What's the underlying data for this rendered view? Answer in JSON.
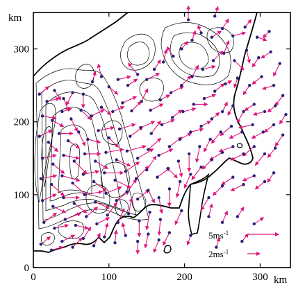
{
  "chart_data": {
    "type": "scatter",
    "title": "",
    "xlabel": "",
    "ylabel": "",
    "x_unit": "km",
    "y_unit": "km",
    "xlim": [
      0,
      340
    ],
    "ylim": [
      0,
      350
    ],
    "xticks": [
      0,
      100,
      200,
      300
    ],
    "yticks": [
      0,
      100,
      200,
      300
    ],
    "xtick_labels": [
      "0",
      "100",
      "200",
      "300"
    ],
    "ytick_labels": [
      "0",
      "100",
      "200",
      "300"
    ],
    "grid": false,
    "legend_position": "bottom-right",
    "vector_color": "#e0157a",
    "station_color": "#2a1f7a",
    "contour_color": "#000000",
    "legend": {
      "entries": [
        {
          "label": "5ms",
          "superscript": "-1",
          "speed": 5
        },
        {
          "label": "2ms",
          "superscript": "-1",
          "speed": 2
        }
      ]
    },
    "stations": [
      {
        "x": 8,
        "y": 238,
        "u": 1.5,
        "v": 1.2
      },
      {
        "x": 18,
        "y": 228,
        "u": 2.0,
        "v": 0.5
      },
      {
        "x": 28,
        "y": 243,
        "u": 1.0,
        "v": -1.5
      },
      {
        "x": 40,
        "y": 232,
        "u": 0.8,
        "v": -2.0
      },
      {
        "x": 52,
        "y": 240,
        "u": -1.0,
        "v": -2.0
      },
      {
        "x": 66,
        "y": 238,
        "u": 0.0,
        "v": -2.2
      },
      {
        "x": 78,
        "y": 255,
        "u": 0.5,
        "v": 1.6
      },
      {
        "x": 90,
        "y": 262,
        "u": -0.5,
        "v": 2.0
      },
      {
        "x": 100,
        "y": 248,
        "u": 1.4,
        "v": -1.2
      },
      {
        "x": 112,
        "y": 258,
        "u": 2.0,
        "v": 0.5
      },
      {
        "x": 125,
        "y": 250,
        "u": 1.5,
        "v": 1.0
      },
      {
        "x": 138,
        "y": 265,
        "u": -1.5,
        "v": 1.8
      },
      {
        "x": 150,
        "y": 258,
        "u": 2.0,
        "v": 1.0
      },
      {
        "x": 160,
        "y": 272,
        "u": 1.0,
        "v": 1.5
      },
      {
        "x": 172,
        "y": 282,
        "u": 0.5,
        "v": 2.0
      },
      {
        "x": 185,
        "y": 290,
        "u": -1.0,
        "v": 1.5
      },
      {
        "x": 196,
        "y": 300,
        "u": 1.0,
        "v": 1.2
      },
      {
        "x": 210,
        "y": 312,
        "u": 0.5,
        "v": 1.5
      },
      {
        "x": 222,
        "y": 322,
        "u": -0.5,
        "v": 1.2
      },
      {
        "x": 236,
        "y": 316,
        "u": 1.5,
        "v": 1.0
      },
      {
        "x": 250,
        "y": 328,
        "u": 1.0,
        "v": 1.5
      },
      {
        "x": 264,
        "y": 318,
        "u": 2.0,
        "v": 0.5
      },
      {
        "x": 280,
        "y": 330,
        "u": 1.0,
        "v": 1.2
      },
      {
        "x": 296,
        "y": 316,
        "u": 1.5,
        "v": -0.5
      },
      {
        "x": 312,
        "y": 324,
        "u": -1.0,
        "v": -1.0
      },
      {
        "x": 205,
        "y": 340,
        "u": 0.0,
        "v": 2.2
      },
      {
        "x": 240,
        "y": 345,
        "u": 0.5,
        "v": 1.5
      },
      {
        "x": 12,
        "y": 208,
        "u": 2.2,
        "v": -0.4
      },
      {
        "x": 25,
        "y": 202,
        "u": 1.8,
        "v": -1.0
      },
      {
        "x": 38,
        "y": 214,
        "u": 1.5,
        "v": 0.5
      },
      {
        "x": 50,
        "y": 204,
        "u": 1.0,
        "v": -2.0
      },
      {
        "x": 63,
        "y": 216,
        "u": 1.6,
        "v": -1.5
      },
      {
        "x": 77,
        "y": 208,
        "u": 2.0,
        "v": 1.0
      },
      {
        "x": 90,
        "y": 220,
        "u": 1.5,
        "v": -1.2
      },
      {
        "x": 105,
        "y": 214,
        "u": 1.8,
        "v": 0.8
      },
      {
        "x": 118,
        "y": 226,
        "u": 2.2,
        "v": 1.0
      },
      {
        "x": 130,
        "y": 215,
        "u": 1.5,
        "v": 1.5
      },
      {
        "x": 143,
        "y": 228,
        "u": 1.0,
        "v": 2.0
      },
      {
        "x": 155,
        "y": 216,
        "u": 2.0,
        "v": 1.0
      },
      {
        "x": 168,
        "y": 230,
        "u": 1.5,
        "v": 0.8
      },
      {
        "x": 182,
        "y": 240,
        "u": 2.0,
        "v": 1.0
      },
      {
        "x": 196,
        "y": 250,
        "u": 1.5,
        "v": 1.5
      },
      {
        "x": 210,
        "y": 262,
        "u": 1.0,
        "v": 1.8
      },
      {
        "x": 224,
        "y": 272,
        "u": 2.0,
        "v": 0.5
      },
      {
        "x": 238,
        "y": 284,
        "u": 1.5,
        "v": 1.5
      },
      {
        "x": 252,
        "y": 294,
        "u": 0.8,
        "v": 2.0
      },
      {
        "x": 266,
        "y": 284,
        "u": 1.5,
        "v": -1.5
      },
      {
        "x": 282,
        "y": 298,
        "u": 0.5,
        "v": -2.0
      },
      {
        "x": 298,
        "y": 288,
        "u": -1.0,
        "v": -1.5
      },
      {
        "x": 314,
        "y": 296,
        "u": -1.5,
        "v": -1.0
      },
      {
        "x": 326,
        "y": 280,
        "u": -1.0,
        "v": -2.0
      },
      {
        "x": 8,
        "y": 180,
        "u": 2.0,
        "v": 1.0
      },
      {
        "x": 20,
        "y": 172,
        "u": 1.5,
        "v": -1.5
      },
      {
        "x": 34,
        "y": 184,
        "u": 2.2,
        "v": 0.0
      },
      {
        "x": 46,
        "y": 174,
        "u": 1.8,
        "v": -1.2
      },
      {
        "x": 60,
        "y": 186,
        "u": 1.0,
        "v": -2.2
      },
      {
        "x": 72,
        "y": 176,
        "u": 2.0,
        "v": -0.5
      },
      {
        "x": 86,
        "y": 188,
        "u": 2.5,
        "v": 0.5
      },
      {
        "x": 100,
        "y": 178,
        "u": 1.5,
        "v": -1.5
      },
      {
        "x": 114,
        "y": 190,
        "u": 2.5,
        "v": 0.8
      },
      {
        "x": 128,
        "y": 180,
        "u": 2.0,
        "v": 1.5
      },
      {
        "x": 142,
        "y": 192,
        "u": 2.2,
        "v": 1.0
      },
      {
        "x": 156,
        "y": 184,
        "u": 1.5,
        "v": 2.0
      },
      {
        "x": 170,
        "y": 196,
        "u": 2.0,
        "v": 0.8
      },
      {
        "x": 184,
        "y": 206,
        "u": 1.5,
        "v": 1.2
      },
      {
        "x": 198,
        "y": 214,
        "u": 2.0,
        "v": 0.5
      },
      {
        "x": 212,
        "y": 224,
        "u": 2.2,
        "v": 0.0
      },
      {
        "x": 226,
        "y": 232,
        "u": 1.8,
        "v": 0.6
      },
      {
        "x": 240,
        "y": 242,
        "u": 1.5,
        "v": 1.2
      },
      {
        "x": 254,
        "y": 252,
        "u": 1.0,
        "v": 0.5
      },
      {
        "x": 270,
        "y": 260,
        "u": -0.5,
        "v": -1.5
      },
      {
        "x": 286,
        "y": 250,
        "u": -1.0,
        "v": -1.5
      },
      {
        "x": 302,
        "y": 262,
        "u": -1.5,
        "v": -1.2
      },
      {
        "x": 318,
        "y": 250,
        "u": -1.8,
        "v": -0.6
      },
      {
        "x": 330,
        "y": 236,
        "u": -1.2,
        "v": -1.6
      },
      {
        "x": 12,
        "y": 150,
        "u": 2.2,
        "v": 0.5
      },
      {
        "x": 26,
        "y": 142,
        "u": 1.8,
        "v": -1.5
      },
      {
        "x": 40,
        "y": 154,
        "u": 2.5,
        "v": -0.5
      },
      {
        "x": 54,
        "y": 146,
        "u": 2.0,
        "v": -2.0
      },
      {
        "x": 68,
        "y": 156,
        "u": 2.5,
        "v": 0.0
      },
      {
        "x": 82,
        "y": 146,
        "u": 2.0,
        "v": -1.2
      },
      {
        "x": 96,
        "y": 158,
        "u": 2.8,
        "v": 0.5
      },
      {
        "x": 110,
        "y": 148,
        "u": 2.2,
        "v": -1.0
      },
      {
        "x": 124,
        "y": 160,
        "u": 3.0,
        "v": 0.8
      },
      {
        "x": 138,
        "y": 150,
        "u": 2.5,
        "v": 1.5
      },
      {
        "x": 152,
        "y": 162,
        "u": 2.0,
        "v": 1.8
      },
      {
        "x": 166,
        "y": 154,
        "u": 2.2,
        "v": 1.0
      },
      {
        "x": 180,
        "y": 166,
        "u": 2.0,
        "v": 1.5
      },
      {
        "x": 194,
        "y": 176,
        "u": 1.8,
        "v": 1.0
      },
      {
        "x": 208,
        "y": 186,
        "u": 2.0,
        "v": 0.5
      },
      {
        "x": 222,
        "y": 194,
        "u": 1.5,
        "v": 0.8
      },
      {
        "x": 236,
        "y": 204,
        "u": 1.2,
        "v": 1.0
      },
      {
        "x": 250,
        "y": 214,
        "u": 0.8,
        "v": 1.5
      },
      {
        "x": 264,
        "y": 222,
        "u": -0.8,
        "v": -1.5
      },
      {
        "x": 278,
        "y": 214,
        "u": -1.0,
        "v": -1.8
      },
      {
        "x": 292,
        "y": 224,
        "u": -1.5,
        "v": -1.0
      },
      {
        "x": 306,
        "y": 214,
        "u": -1.8,
        "v": -0.5
      },
      {
        "x": 320,
        "y": 222,
        "u": -1.2,
        "v": -1.0
      },
      {
        "x": 334,
        "y": 210,
        "u": -1.0,
        "v": -1.5
      },
      {
        "x": 10,
        "y": 122,
        "u": 2.5,
        "v": 0.5
      },
      {
        "x": 24,
        "y": 114,
        "u": 2.0,
        "v": -1.8
      },
      {
        "x": 38,
        "y": 126,
        "u": 2.8,
        "v": -0.8
      },
      {
        "x": 52,
        "y": 116,
        "u": 2.2,
        "v": -2.0
      },
      {
        "x": 66,
        "y": 128,
        "u": 2.5,
        "v": 0.5
      },
      {
        "x": 80,
        "y": 118,
        "u": 2.0,
        "v": -1.5
      },
      {
        "x": 94,
        "y": 130,
        "u": 3.0,
        "v": 0.0
      },
      {
        "x": 108,
        "y": 120,
        "u": 2.5,
        "v": -1.2
      },
      {
        "x": 122,
        "y": 132,
        "u": 2.2,
        "v": 1.5
      },
      {
        "x": 136,
        "y": 122,
        "u": 2.0,
        "v": 2.0
      },
      {
        "x": 150,
        "y": 134,
        "u": 1.5,
        "v": 2.2
      },
      {
        "x": 164,
        "y": 124,
        "u": 2.0,
        "v": 1.5
      },
      {
        "x": 178,
        "y": 136,
        "u": 1.5,
        "v": -1.5
      },
      {
        "x": 192,
        "y": 146,
        "u": 0.5,
        "v": -2.5
      },
      {
        "x": 206,
        "y": 156,
        "u": 0.0,
        "v": -2.8
      },
      {
        "x": 220,
        "y": 166,
        "u": -0.5,
        "v": -2.5
      },
      {
        "x": 234,
        "y": 176,
        "u": -1.0,
        "v": -2.0
      },
      {
        "x": 248,
        "y": 186,
        "u": -1.5,
        "v": -1.8
      },
      {
        "x": 262,
        "y": 194,
        "u": -1.8,
        "v": -1.5
      },
      {
        "x": 276,
        "y": 186,
        "u": -2.0,
        "v": -1.0
      },
      {
        "x": 290,
        "y": 196,
        "u": -2.2,
        "v": -0.5
      },
      {
        "x": 304,
        "y": 186,
        "u": -1.8,
        "v": -1.0
      },
      {
        "x": 318,
        "y": 196,
        "u": -1.5,
        "v": -1.2
      },
      {
        "x": 330,
        "y": 182,
        "u": -1.2,
        "v": -1.8
      },
      {
        "x": 12,
        "y": 92,
        "u": 2.2,
        "v": 1.0
      },
      {
        "x": 26,
        "y": 84,
        "u": 2.0,
        "v": -1.0
      },
      {
        "x": 40,
        "y": 96,
        "u": 2.5,
        "v": 0.0
      },
      {
        "x": 54,
        "y": 88,
        "u": 2.0,
        "v": -1.5
      },
      {
        "x": 68,
        "y": 100,
        "u": 2.8,
        "v": 0.5
      },
      {
        "x": 82,
        "y": 90,
        "u": 2.2,
        "v": -1.0
      },
      {
        "x": 96,
        "y": 102,
        "u": 2.5,
        "v": 1.0
      },
      {
        "x": 110,
        "y": 92,
        "u": 2.0,
        "v": 1.5
      },
      {
        "x": 124,
        "y": 104,
        "u": 1.5,
        "v": 2.0
      },
      {
        "x": 138,
        "y": 94,
        "u": 1.8,
        "v": 1.5
      },
      {
        "x": 152,
        "y": 106,
        "u": 1.0,
        "v": -2.0
      },
      {
        "x": 166,
        "y": 96,
        "u": 0.5,
        "v": -2.5
      },
      {
        "x": 180,
        "y": 108,
        "u": 0.0,
        "v": -2.8
      },
      {
        "x": 194,
        "y": 118,
        "u": -0.5,
        "v": -2.5
      },
      {
        "x": 208,
        "y": 128,
        "u": -1.0,
        "v": -2.2
      },
      {
        "x": 222,
        "y": 138,
        "u": -1.5,
        "v": -2.0
      },
      {
        "x": 236,
        "y": 148,
        "u": -1.5,
        "v": -1.5
      },
      {
        "x": 250,
        "y": 158,
        "u": -2.0,
        "v": -1.2
      },
      {
        "x": 264,
        "y": 166,
        "u": -2.2,
        "v": -0.8
      },
      {
        "x": 278,
        "y": 156,
        "u": -2.0,
        "v": -1.0
      },
      {
        "x": 292,
        "y": 166,
        "u": -1.8,
        "v": -1.5
      },
      {
        "x": 306,
        "y": 156,
        "u": -1.5,
        "v": -1.8
      },
      {
        "x": 320,
        "y": 164,
        "u": -1.2,
        "v": -1.5
      },
      {
        "x": 14,
        "y": 62,
        "u": 2.0,
        "v": 1.5
      },
      {
        "x": 28,
        "y": 54,
        "u": 2.2,
        "v": 0.5
      },
      {
        "x": 42,
        "y": 66,
        "u": 2.5,
        "v": 1.0
      },
      {
        "x": 56,
        "y": 58,
        "u": 2.0,
        "v": -0.5
      },
      {
        "x": 70,
        "y": 70,
        "u": 1.8,
        "v": 1.5
      },
      {
        "x": 84,
        "y": 60,
        "u": 2.0,
        "v": 1.0
      },
      {
        "x": 98,
        "y": 72,
        "u": 1.5,
        "v": 2.0
      },
      {
        "x": 112,
        "y": 62,
        "u": 1.0,
        "v": 2.2
      },
      {
        "x": 126,
        "y": 74,
        "u": 0.5,
        "v": 2.5
      },
      {
        "x": 140,
        "y": 64,
        "u": 0.0,
        "v": -2.5
      },
      {
        "x": 154,
        "y": 76,
        "u": -0.5,
        "v": -2.8
      },
      {
        "x": 168,
        "y": 66,
        "u": -0.2,
        "v": -2.5
      },
      {
        "x": 196,
        "y": 78,
        "u": -1.0,
        "v": -2.2
      },
      {
        "x": 232,
        "y": 96,
        "u": -1.2,
        "v": -2.0
      },
      {
        "x": 250,
        "y": 112,
        "u": -1.5,
        "v": -1.5
      },
      {
        "x": 264,
        "y": 124,
        "u": -1.8,
        "v": -1.2
      },
      {
        "x": 278,
        "y": 114,
        "u": -2.0,
        "v": -1.0
      },
      {
        "x": 292,
        "y": 126,
        "u": -1.8,
        "v": -0.8
      },
      {
        "x": 306,
        "y": 118,
        "u": -1.5,
        "v": -1.2
      },
      {
        "x": 318,
        "y": 130,
        "u": -1.0,
        "v": -1.5
      },
      {
        "x": 232,
        "y": 70,
        "u": 0.5,
        "v": 2.0
      },
      {
        "x": 250,
        "y": 62,
        "u": 0.8,
        "v": 1.8
      },
      {
        "x": 270,
        "y": 70,
        "u": 1.0,
        "v": 1.5
      },
      {
        "x": 292,
        "y": 60,
        "u": 1.5,
        "v": 1.0
      },
      {
        "x": 10,
        "y": 32,
        "u": 1.5,
        "v": 1.2
      },
      {
        "x": 24,
        "y": 24,
        "u": 1.8,
        "v": 0.5
      },
      {
        "x": 38,
        "y": 36,
        "u": 2.0,
        "v": 1.0
      },
      {
        "x": 52,
        "y": 28,
        "u": 1.5,
        "v": 1.5
      },
      {
        "x": 66,
        "y": 40,
        "u": 1.2,
        "v": 1.8
      },
      {
        "x": 80,
        "y": 30,
        "u": 1.0,
        "v": 2.0
      },
      {
        "x": 94,
        "y": 42,
        "u": 0.5,
        "v": 2.2
      },
      {
        "x": 108,
        "y": 34,
        "u": 0.2,
        "v": 2.0
      },
      {
        "x": 122,
        "y": 44,
        "u": -0.5,
        "v": 2.0
      },
      {
        "x": 138,
        "y": 36,
        "u": 0.0,
        "v": -2.0
      },
      {
        "x": 152,
        "y": 46,
        "u": -0.5,
        "v": -2.2
      },
      {
        "x": 166,
        "y": 38,
        "u": -0.8,
        "v": -2.0
      },
      {
        "x": 180,
        "y": 48,
        "u": -1.0,
        "v": -2.0
      },
      {
        "x": 208,
        "y": 44,
        "u": -0.5,
        "v": -1.5
      },
      {
        "x": 242,
        "y": 28,
        "u": 0.5,
        "v": 1.5
      },
      {
        "x": 276,
        "y": 36,
        "u": 1.0,
        "v": 1.2
      }
    ]
  }
}
